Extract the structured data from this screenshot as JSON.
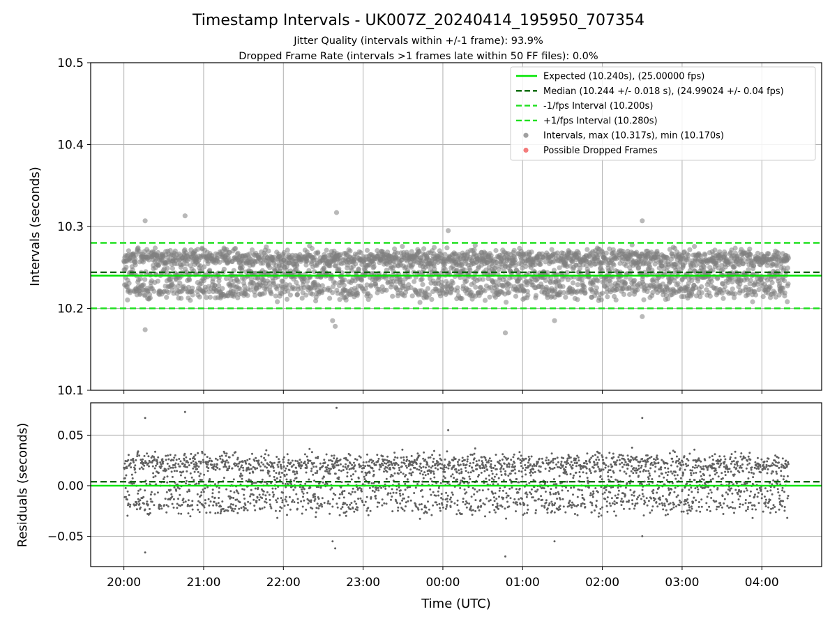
{
  "title": "Timestamp Intervals - UK007Z_20240414_195950_707354",
  "subtitle_1": "Jitter Quality (intervals within +/-1 frame): 93.9%",
  "subtitle_2": "Dropped Frame Rate (intervals >1 frames late within 50 FF files): 0.0%",
  "colors": {
    "expected": "#00e600",
    "median": "#006400",
    "bounds": "#1fe01f",
    "points": "#808080",
    "dropped": "#f05050",
    "grid": "#b0b0b0"
  },
  "chart_data": [
    {
      "type": "scatter",
      "ylabel": "Intervals (seconds)",
      "ylim": [
        10.1,
        10.5
      ],
      "yticks": [
        "10.1",
        "10.2",
        "10.3",
        "10.4",
        "10.5"
      ],
      "xlim": [
        "19:35",
        "04:45"
      ],
      "xticks": [
        "20:00",
        "21:00",
        "22:00",
        "23:00",
        "00:00",
        "01:00",
        "02:00",
        "03:00",
        "04:00"
      ],
      "grid": true,
      "legend_position": "top-right",
      "hlines": [
        {
          "name": "Expected (10.240s), (25.00000 fps)",
          "y": 10.24,
          "style": "solid",
          "color_key": "expected"
        },
        {
          "name": "Median (10.244 +/- 0.018 s), (24.99024 +/- 0.04 fps)",
          "y": 10.244,
          "style": "dashed",
          "color_key": "median"
        },
        {
          "name": "-1/fps Interval (10.200s)",
          "y": 10.2,
          "style": "dashed",
          "color_key": "bounds"
        },
        {
          "name": "+1/fps Interval (10.280s)",
          "y": 10.28,
          "style": "dashed",
          "color_key": "bounds"
        }
      ],
      "series": [
        {
          "name": "Intervals, max (10.317s), min (10.170s)",
          "marker": "circle",
          "color_key": "points",
          "t_start": "20:00",
          "t_end": "04:20",
          "y_min": 10.17,
          "y_max": 10.317,
          "y_center": 10.244,
          "count_approx": 2950,
          "outliers": [
            {
              "t": "20:16",
              "y": 10.174
            },
            {
              "t": "20:16",
              "y": 10.307
            },
            {
              "t": "20:46",
              "y": 10.313
            },
            {
              "t": "22:37",
              "y": 10.185
            },
            {
              "t": "22:39",
              "y": 10.178
            },
            {
              "t": "22:40",
              "y": 10.317
            },
            {
              "t": "00:47",
              "y": 10.17
            },
            {
              "t": "01:24",
              "y": 10.185
            },
            {
              "t": "02:30",
              "y": 10.307
            },
            {
              "t": "02:30",
              "y": 10.19
            },
            {
              "t": "00:04",
              "y": 10.295
            }
          ]
        },
        {
          "name": "Possible Dropped Frames",
          "marker": "circle",
          "color_key": "dropped",
          "points": []
        }
      ]
    },
    {
      "type": "scatter",
      "ylabel": "Residuals (seconds)",
      "ylim": [
        -0.08,
        0.082
      ],
      "yticks": [
        "−0.05",
        "0.00",
        "0.05"
      ],
      "ytick_values": [
        -0.05,
        0.0,
        0.05
      ],
      "xlabel": "Time (UTC)",
      "xticks": [
        "20:00",
        "21:00",
        "22:00",
        "23:00",
        "00:00",
        "01:00",
        "02:00",
        "03:00",
        "04:00"
      ],
      "grid": true,
      "hlines": [
        {
          "y": 0.0,
          "style": "solid",
          "color_key": "expected"
        },
        {
          "y": 0.004,
          "style": "dashed",
          "color_key": "median"
        }
      ],
      "series": [
        {
          "name": "Residuals",
          "color_key": "points",
          "y_min": -0.07,
          "y_max": 0.077
        }
      ]
    }
  ]
}
